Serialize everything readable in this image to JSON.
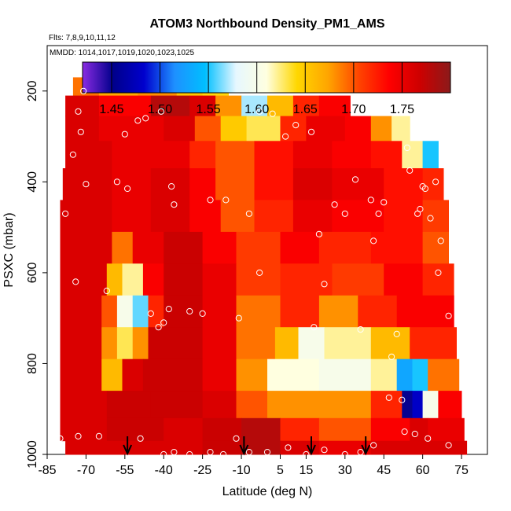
{
  "chart_data": {
    "type": "heatmap",
    "title": "ATOM3 Northbound Density_PM1_AMS",
    "annotations": [
      "Flts: 7,8,9,10,11,12",
      "MMDD: 1014,1017,1019,1020,1023,1025"
    ],
    "xlabel": "Latitude (deg N)",
    "ylabel": "PSXC (mbar)",
    "xlim": [
      -85,
      85
    ],
    "ylim": [
      1000,
      100
    ],
    "x_ticks": [
      -85,
      -70,
      -55,
      -40,
      -25,
      -10,
      5,
      15,
      30,
      45,
      60,
      75
    ],
    "y_ticks": [
      200,
      400,
      600,
      800,
      1000
    ],
    "colorbar": {
      "min": 1.42,
      "max": 1.8,
      "ticks": [
        1.45,
        1.5,
        1.55,
        1.6,
        1.65,
        1.7,
        1.75
      ],
      "tick_labels": [
        "1.45",
        "1.50",
        "1.55",
        "1.60",
        "1.65",
        "1.70",
        "1.75"
      ],
      "colors": [
        "#8a2be2",
        "#00008b",
        "#0000cd",
        "#1e90ff",
        "#00bfff",
        "#e6f7ff",
        "#ffffe0",
        "#ffd700",
        "#ffa500",
        "#ff4500",
        "#ff0000",
        "#cd0000",
        "#8b1a1a"
      ]
    },
    "arrows_lat": [
      -54,
      -9,
      17,
      38
    ],
    "layers": [
      {
        "p_top": 170,
        "p_bot": 210,
        "segments": [
          [
            -75,
            -65,
            1.69
          ],
          [
            -65,
            -50,
            1.67
          ],
          [
            -50,
            -35,
            1.68
          ],
          [
            -35,
            -25,
            1.65
          ],
          [
            -25,
            -15,
            1.64
          ]
        ]
      },
      {
        "p_top": 210,
        "p_bot": 255,
        "segments": [
          [
            -78,
            -65,
            1.76
          ],
          [
            -65,
            -45,
            1.74
          ],
          [
            -45,
            -30,
            1.78
          ],
          [
            -30,
            -20,
            1.76
          ],
          [
            -20,
            -10,
            1.68
          ],
          [
            -10,
            0,
            1.57
          ],
          [
            0,
            10,
            1.66
          ],
          [
            10,
            20,
            1.72
          ],
          [
            20,
            32,
            1.74
          ]
        ]
      },
      {
        "p_top": 255,
        "p_bot": 310,
        "segments": [
          [
            -78,
            -65,
            1.76
          ],
          [
            -65,
            -40,
            1.75
          ],
          [
            -40,
            -28,
            1.76
          ],
          [
            -28,
            -18,
            1.7
          ],
          [
            -18,
            -8,
            1.65
          ],
          [
            -8,
            5,
            1.63
          ],
          [
            5,
            15,
            1.72
          ],
          [
            15,
            30,
            1.75
          ],
          [
            30,
            40,
            1.74
          ],
          [
            40,
            48,
            1.68
          ],
          [
            48,
            55,
            1.62
          ]
        ]
      },
      {
        "p_top": 310,
        "p_bot": 370,
        "segments": [
          [
            -78,
            -60,
            1.76
          ],
          [
            -60,
            -45,
            1.75
          ],
          [
            -45,
            -30,
            1.75
          ],
          [
            -30,
            -20,
            1.72
          ],
          [
            -20,
            -5,
            1.7
          ],
          [
            -5,
            10,
            1.73
          ],
          [
            10,
            25,
            1.75
          ],
          [
            25,
            40,
            1.74
          ],
          [
            40,
            52,
            1.73
          ],
          [
            52,
            60,
            1.62
          ],
          [
            60,
            66,
            1.55
          ]
        ]
      },
      {
        "p_top": 370,
        "p_bot": 440,
        "segments": [
          [
            -79,
            -60,
            1.76
          ],
          [
            -60,
            -45,
            1.75
          ],
          [
            -45,
            -30,
            1.76
          ],
          [
            -30,
            -20,
            1.74
          ],
          [
            -20,
            -5,
            1.7
          ],
          [
            -5,
            10,
            1.73
          ],
          [
            10,
            25,
            1.76
          ],
          [
            25,
            45,
            1.75
          ],
          [
            45,
            60,
            1.73
          ],
          [
            60,
            68,
            1.72
          ]
        ]
      },
      {
        "p_top": 440,
        "p_bot": 510,
        "segments": [
          [
            -80,
            -60,
            1.76
          ],
          [
            -60,
            -45,
            1.75
          ],
          [
            -45,
            -30,
            1.76
          ],
          [
            -30,
            -18,
            1.74
          ],
          [
            -18,
            -5,
            1.7
          ],
          [
            -5,
            10,
            1.72
          ],
          [
            10,
            25,
            1.75
          ],
          [
            25,
            45,
            1.74
          ],
          [
            45,
            60,
            1.73
          ],
          [
            60,
            70,
            1.71
          ]
        ]
      },
      {
        "p_top": 510,
        "p_bot": 580,
        "segments": [
          [
            -80,
            -60,
            1.76
          ],
          [
            -60,
            -52,
            1.69
          ],
          [
            -52,
            -40,
            1.75
          ],
          [
            -40,
            -25,
            1.77
          ],
          [
            -25,
            -12,
            1.74
          ],
          [
            -12,
            5,
            1.71
          ],
          [
            5,
            20,
            1.74
          ],
          [
            20,
            40,
            1.72
          ],
          [
            40,
            60,
            1.73
          ],
          [
            60,
            70,
            1.7
          ]
        ]
      },
      {
        "p_top": 580,
        "p_bot": 650,
        "segments": [
          [
            -80,
            -62,
            1.76
          ],
          [
            -62,
            -56,
            1.66
          ],
          [
            -56,
            -48,
            1.62
          ],
          [
            -48,
            -40,
            1.74
          ],
          [
            -40,
            -25,
            1.77
          ],
          [
            -25,
            -12,
            1.75
          ],
          [
            -12,
            5,
            1.71
          ],
          [
            5,
            25,
            1.72
          ],
          [
            25,
            45,
            1.71
          ],
          [
            45,
            60,
            1.74
          ],
          [
            60,
            72,
            1.72
          ]
        ]
      },
      {
        "p_top": 650,
        "p_bot": 720,
        "segments": [
          [
            -80,
            -64,
            1.76
          ],
          [
            -64,
            -58,
            1.7
          ],
          [
            -58,
            -52,
            1.6
          ],
          [
            -52,
            -46,
            1.56
          ],
          [
            -46,
            -40,
            1.72
          ],
          [
            -40,
            -25,
            1.77
          ],
          [
            -25,
            -12,
            1.75
          ],
          [
            -12,
            5,
            1.69
          ],
          [
            5,
            20,
            1.72
          ],
          [
            20,
            35,
            1.68
          ],
          [
            35,
            50,
            1.72
          ],
          [
            50,
            72,
            1.74
          ]
        ]
      },
      {
        "p_top": 720,
        "p_bot": 790,
        "segments": [
          [
            -80,
            -64,
            1.76
          ],
          [
            -64,
            -58,
            1.68
          ],
          [
            -58,
            -52,
            1.63
          ],
          [
            -52,
            -46,
            1.68
          ],
          [
            -46,
            -25,
            1.77
          ],
          [
            -25,
            -12,
            1.75
          ],
          [
            -12,
            3,
            1.69
          ],
          [
            3,
            12,
            1.66
          ],
          [
            12,
            22,
            1.6
          ],
          [
            22,
            40,
            1.62
          ],
          [
            40,
            55,
            1.66
          ],
          [
            55,
            73,
            1.72
          ]
        ]
      },
      {
        "p_top": 790,
        "p_bot": 860,
        "segments": [
          [
            -80,
            -64,
            1.76
          ],
          [
            -64,
            -56,
            1.66
          ],
          [
            -56,
            -48,
            1.76
          ],
          [
            -48,
            -25,
            1.77
          ],
          [
            -25,
            -12,
            1.75
          ],
          [
            -12,
            0,
            1.68
          ],
          [
            0,
            20,
            1.61
          ],
          [
            20,
            40,
            1.6
          ],
          [
            40,
            50,
            1.62
          ],
          [
            50,
            56,
            1.53
          ],
          [
            56,
            62,
            1.55
          ],
          [
            62,
            74,
            1.69
          ]
        ]
      },
      {
        "p_top": 860,
        "p_bot": 920,
        "segments": [
          [
            -80,
            -62,
            1.76
          ],
          [
            -62,
            -45,
            1.77
          ],
          [
            -45,
            -25,
            1.77
          ],
          [
            -25,
            -12,
            1.76
          ],
          [
            -12,
            0,
            1.7
          ],
          [
            0,
            20,
            1.68
          ],
          [
            20,
            40,
            1.68
          ],
          [
            40,
            52,
            1.72
          ],
          [
            52,
            56,
            1.45
          ],
          [
            56,
            60,
            1.48
          ],
          [
            60,
            66,
            1.6
          ],
          [
            66,
            75,
            1.74
          ]
        ]
      },
      {
        "p_top": 920,
        "p_bot": 970,
        "segments": [
          [
            -80,
            -62,
            1.76
          ],
          [
            -62,
            -40,
            1.77
          ],
          [
            -40,
            -25,
            1.76
          ],
          [
            -25,
            -10,
            1.77
          ],
          [
            -10,
            5,
            1.78
          ],
          [
            5,
            20,
            1.72
          ],
          [
            20,
            40,
            1.7
          ],
          [
            40,
            55,
            1.74
          ],
          [
            55,
            62,
            1.76
          ],
          [
            62,
            76,
            1.75
          ]
        ]
      },
      {
        "p_top": 970,
        "p_bot": 1000,
        "segments": [
          [
            -78,
            -60,
            1.76
          ],
          [
            -60,
            -40,
            1.76
          ],
          [
            -40,
            -25,
            1.76
          ],
          [
            -25,
            -10,
            1.77
          ],
          [
            -10,
            5,
            1.78
          ],
          [
            5,
            20,
            1.76
          ],
          [
            20,
            40,
            1.75
          ],
          [
            40,
            60,
            1.76
          ],
          [
            60,
            77,
            1.76
          ]
        ]
      }
    ],
    "samples": [
      [
        -71,
        200
      ],
      [
        -73,
        245
      ],
      [
        -72,
        290
      ],
      [
        -75,
        340
      ],
      [
        -70,
        405
      ],
      [
        -58,
        400
      ],
      [
        -78,
        470
      ],
      [
        -74,
        620
      ],
      [
        -62,
        640
      ],
      [
        -54,
        415
      ],
      [
        -55,
        295
      ],
      [
        -50,
        265
      ],
      [
        -47,
        260
      ],
      [
        -41,
        245
      ],
      [
        -37,
        410
      ],
      [
        -36,
        450
      ],
      [
        -22,
        440
      ],
      [
        -16,
        440
      ],
      [
        -25,
        690
      ],
      [
        -45,
        690
      ],
      [
        -42,
        720
      ],
      [
        -40,
        710
      ],
      [
        -38,
        680
      ],
      [
        -30,
        685
      ],
      [
        -11,
        700
      ],
      [
        -7,
        470
      ],
      [
        -3,
        600
      ],
      [
        -3,
        245
      ],
      [
        2,
        250
      ],
      [
        7,
        300
      ],
      [
        11,
        275
      ],
      [
        17,
        290
      ],
      [
        18,
        720
      ],
      [
        20,
        515
      ],
      [
        22,
        625
      ],
      [
        26,
        450
      ],
      [
        30,
        470
      ],
      [
        34,
        395
      ],
      [
        36,
        725
      ],
      [
        40,
        440
      ],
      [
        41,
        530
      ],
      [
        43,
        470
      ],
      [
        45,
        445
      ],
      [
        47,
        875
      ],
      [
        48,
        785
      ],
      [
        50,
        735
      ],
      [
        52,
        880
      ],
      [
        54,
        325
      ],
      [
        55,
        375
      ],
      [
        58,
        470
      ],
      [
        59,
        460
      ],
      [
        60,
        290
      ],
      [
        60,
        410
      ],
      [
        61,
        415
      ],
      [
        63,
        480
      ],
      [
        65,
        400
      ],
      [
        66,
        600
      ],
      [
        67,
        530
      ],
      [
        68,
        310
      ],
      [
        70,
        695
      ],
      [
        72,
        430
      ],
      [
        -80,
        965
      ],
      [
        -73,
        960
      ],
      [
        -65,
        960
      ],
      [
        -49,
        965
      ],
      [
        -36,
        995
      ],
      [
        -30,
        1000
      ],
      [
        -22,
        995
      ],
      [
        -17,
        1000
      ],
      [
        -7,
        995
      ],
      [
        0,
        995
      ],
      [
        8,
        985
      ],
      [
        15,
        1000
      ],
      [
        22,
        990
      ],
      [
        30,
        1000
      ],
      [
        36,
        995
      ],
      [
        41,
        980
      ],
      [
        53,
        950
      ],
      [
        57,
        955
      ],
      [
        62,
        965
      ],
      [
        70,
        980
      ],
      [
        -40,
        1000
      ],
      [
        -12,
        965
      ]
    ]
  }
}
